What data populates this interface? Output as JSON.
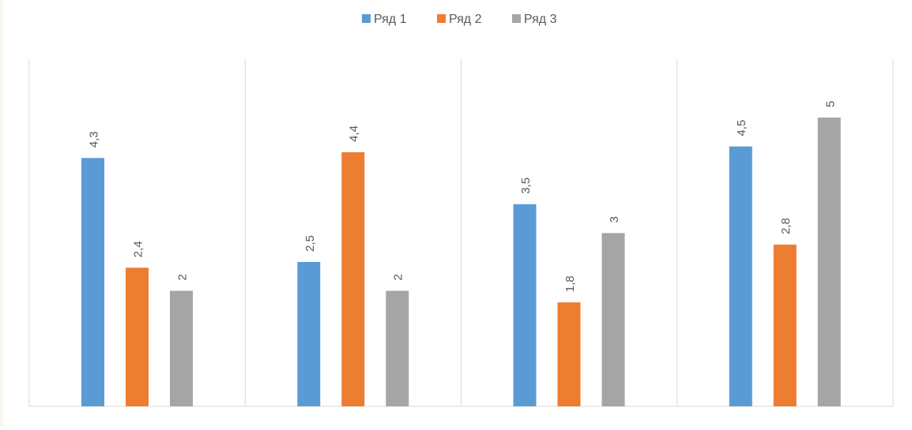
{
  "chart_data": {
    "type": "bar",
    "title": "",
    "xlabel": "",
    "ylabel": "",
    "categories": [
      "",
      "",
      "",
      ""
    ],
    "series": [
      {
        "name": "Ряд 1",
        "color": "#5B9BD5",
        "values": [
          4.3,
          2.5,
          3.5,
          4.5
        ],
        "labels": [
          "4,3",
          "2,5",
          "3,5",
          "4,5"
        ]
      },
      {
        "name": "Ряд 2",
        "color": "#ED7D31",
        "values": [
          2.4,
          4.4,
          1.8,
          2.8
        ],
        "labels": [
          "2,4",
          "4,4",
          "1,8",
          "2,8"
        ]
      },
      {
        "name": "Ряд 3",
        "color": "#A5A5A5",
        "values": [
          2,
          2,
          3,
          5
        ],
        "labels": [
          "2",
          "2",
          "3",
          "5"
        ]
      }
    ],
    "ylim": [
      0,
      5
    ],
    "grid": "vertical category separators",
    "legend_position": "top-center",
    "data_labels": "rotated vertical above bars"
  },
  "colors": {
    "gridline": "#D9D9D9",
    "label_text": "#595959"
  }
}
